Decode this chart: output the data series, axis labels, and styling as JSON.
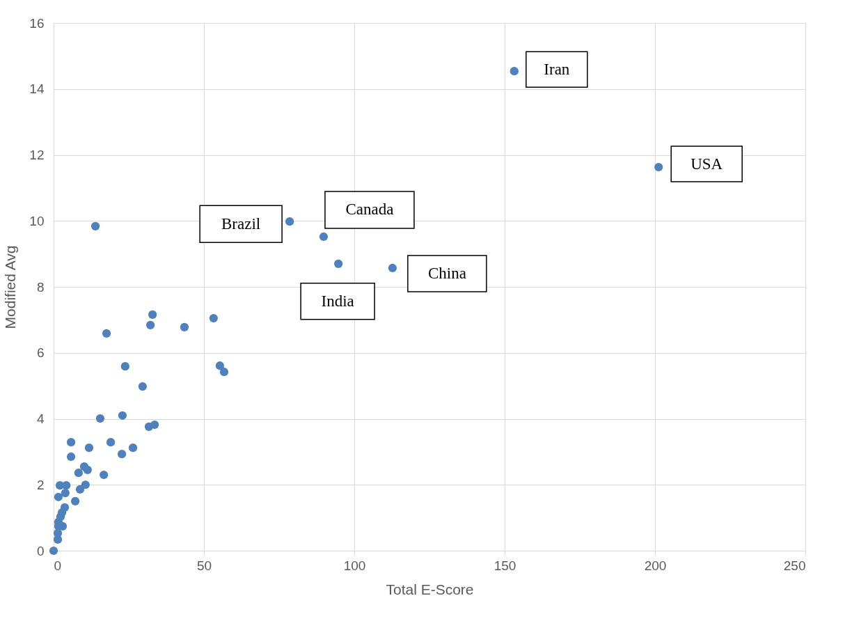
{
  "chart_data": {
    "type": "scatter",
    "xlabel": "Total E-Score",
    "ylabel": "Modified Avg",
    "x": [
      0,
      13.9,
      17.6,
      32.9,
      32.2,
      43.5,
      53.2,
      23.8,
      29.6,
      55.3,
      56.7,
      15.5,
      22.9,
      31.7,
      33.6,
      5.8,
      11.8,
      19.0,
      26.4,
      22.7,
      5.8,
      16.7,
      10.2,
      11.3,
      8.3,
      10.6,
      8.8,
      2.1,
      4.2,
      3.9,
      7.2,
      1.6,
      3.7,
      2.8,
      2.3,
      1.6,
      3.0,
      1.6,
      1.4,
      1.4,
      78.5,
      89.8,
      94.7,
      112.7,
      153.2,
      201.2
    ],
    "series": [
      {
        "color": "#4e81bd",
        "values": [
          0,
          9.84,
          6.59,
          7.16,
          6.84,
          6.78,
          7.05,
          5.59,
          4.98,
          5.61,
          5.42,
          4.01,
          4.1,
          3.76,
          3.82,
          3.29,
          3.12,
          3.29,
          3.12,
          2.93,
          2.85,
          2.3,
          2.55,
          2.45,
          2.36,
          2.0,
          1.86,
          1.98,
          1.98,
          1.75,
          1.5,
          1.63,
          1.31,
          1.16,
          1.03,
          0.87,
          0.74,
          0.74,
          0.53,
          0.34,
          9.98,
          9.52,
          8.7,
          8.57,
          14.54,
          11.63
        ]
      }
    ],
    "xlim": [
      0,
      250
    ],
    "xticks": [
      0,
      50,
      100,
      150,
      200,
      250
    ],
    "ylim": [
      0,
      16
    ],
    "yticks": [
      0,
      2,
      4,
      6,
      8,
      10,
      12,
      14,
      16
    ],
    "grid": true,
    "marker": "circle",
    "annotations": [
      {
        "text": "Brazil",
        "x": 78.5,
        "y": 9.98
      },
      {
        "text": "Canada",
        "x": 89.8,
        "y": 9.52
      },
      {
        "text": "India",
        "x": 94.7,
        "y": 8.7
      },
      {
        "text": "China",
        "x": 112.7,
        "y": 8.57
      },
      {
        "text": "Iran",
        "x": 153.2,
        "y": 14.54
      },
      {
        "text": "USA",
        "x": 201.2,
        "y": 11.63
      }
    ]
  }
}
